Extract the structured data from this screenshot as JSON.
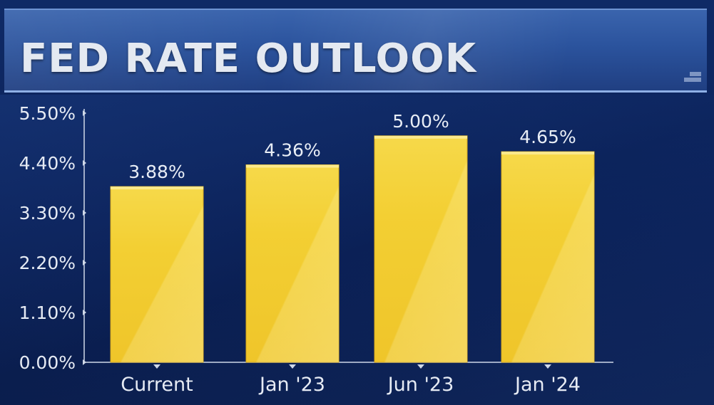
{
  "title": "FED RATE OUTLOOK",
  "chart_data": {
    "type": "bar",
    "title": "FED RATE OUTLOOK",
    "categories": [
      "Current",
      "Jan '23",
      "Jun '23",
      "Jan '24"
    ],
    "values": [
      3.88,
      4.36,
      5.0,
      4.65
    ],
    "data_labels": [
      "3.88%",
      "4.36%",
      "5.00%",
      "4.65%"
    ],
    "y_ticks": [
      0.0,
      1.1,
      2.2,
      3.3,
      4.4,
      5.5
    ],
    "y_tick_labels": [
      "0.00%",
      "1.10%",
      "2.20%",
      "3.30%",
      "4.40%",
      "5.50%"
    ],
    "ylim": [
      0,
      5.5
    ],
    "xlabel": "",
    "ylabel": "",
    "grid": false,
    "legend": "none",
    "colors": {
      "bar_top": "#f4d13a",
      "bar_bottom": "#f0c92c",
      "bar_highlight": "#fbe98c",
      "axis": "#cfd8e8",
      "text": "#e6ebf4",
      "background": "#0c1f4e",
      "title_bar": "#2b539d"
    }
  }
}
